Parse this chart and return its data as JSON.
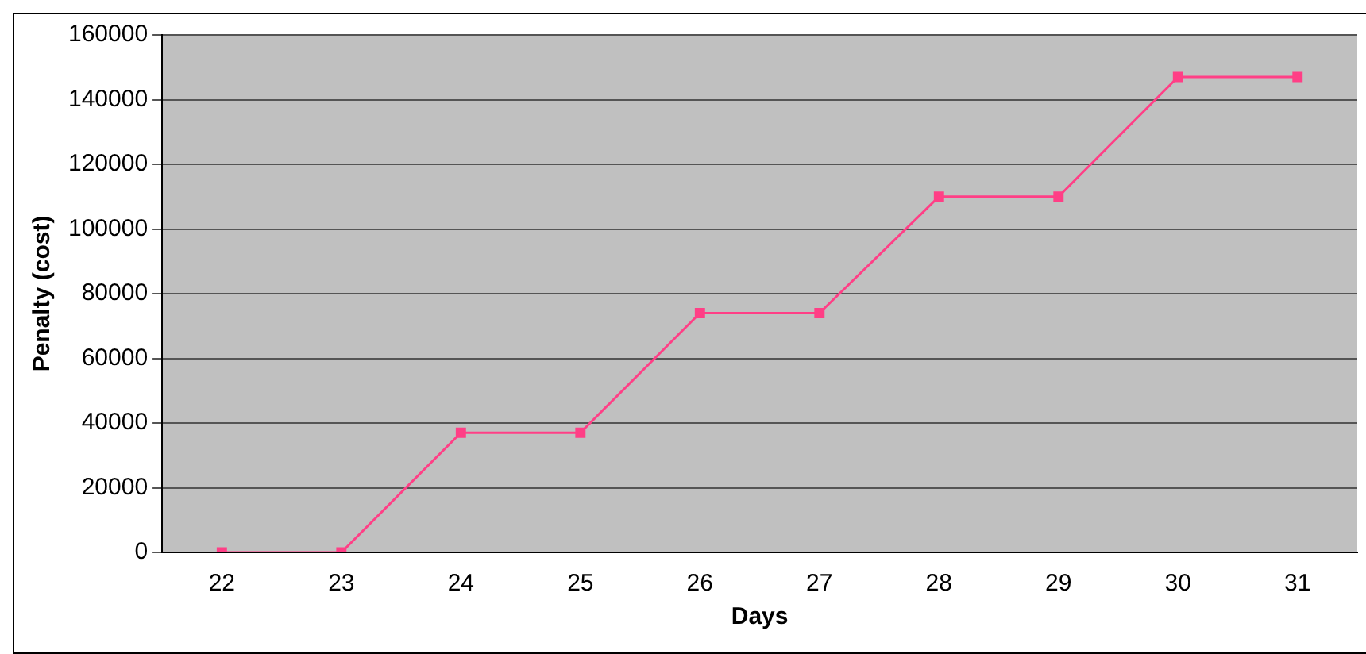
{
  "chart_data": {
    "type": "line",
    "xlabel": "Days",
    "ylabel": "Penalty (cost)",
    "categories": [
      "22",
      "23",
      "24",
      "25",
      "26",
      "27",
      "28",
      "29",
      "30",
      "31"
    ],
    "series": [
      {
        "color": "#ff3f86",
        "values": [
          0,
          0,
          37000,
          37000,
          74000,
          74000,
          110000,
          110000,
          147000,
          147000
        ]
      }
    ],
    "ylim": [
      0,
      160000
    ],
    "yticks": [
      0,
      20000,
      40000,
      60000,
      80000,
      100000,
      120000,
      140000,
      160000
    ],
    "grid": "y",
    "legend": false,
    "marker": "square",
    "line_style": "solid"
  }
}
